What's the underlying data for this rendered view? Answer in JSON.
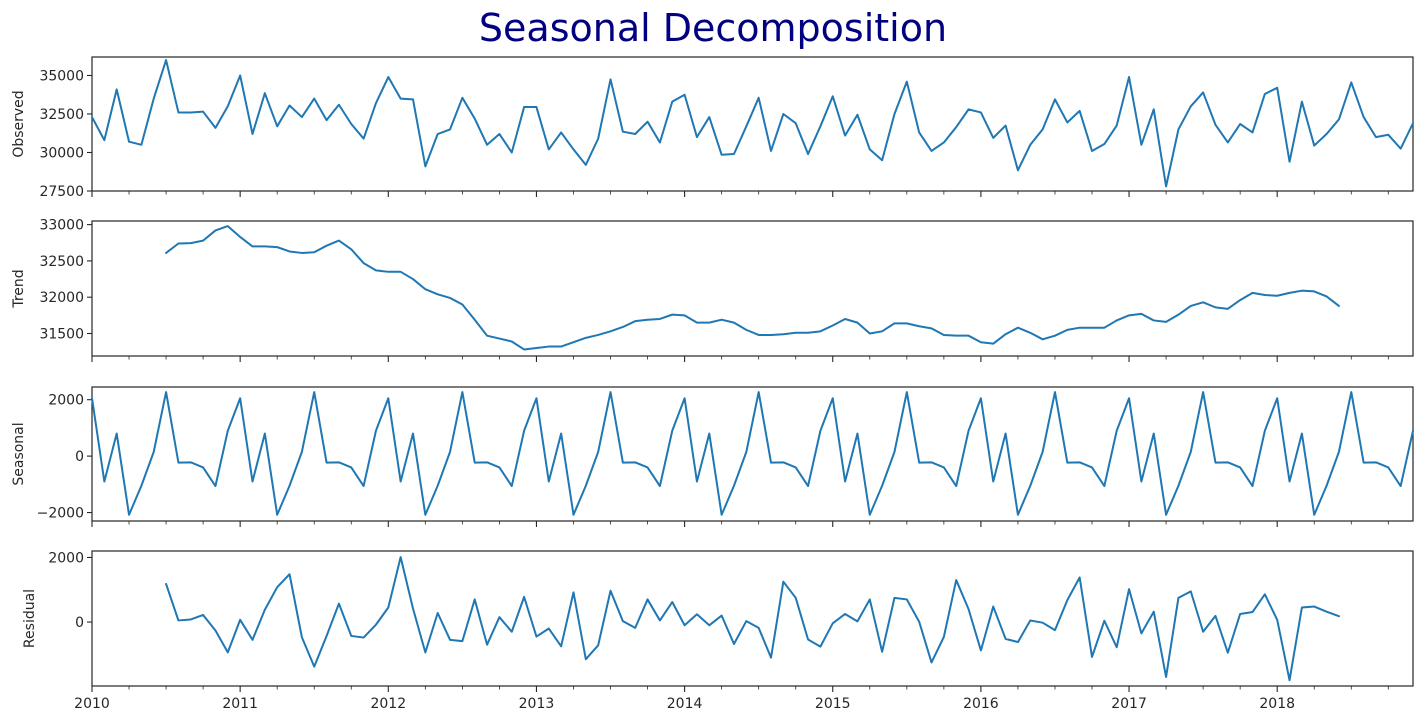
{
  "chart_data": {
    "type": "line",
    "title": "Seasonal Decomposition",
    "line_color": "#1f77b4",
    "title_color": "#000080",
    "x": {
      "start_year": 2010,
      "start_month": 1,
      "frequency": "monthly",
      "xlim": [
        "2010-01",
        "2018-12"
      ],
      "tick_labels": [
        "2010",
        "2011",
        "2012",
        "2013",
        "2014",
        "2015",
        "2016",
        "2017",
        "2018"
      ]
    },
    "panels": [
      {
        "name": "observed",
        "ylabel": "Observed",
        "ylim": [
          27500,
          36200
        ],
        "yticks": [
          27500,
          30000,
          32500,
          35000
        ],
        "ytick_labels": [
          "27500",
          "30000",
          "32500",
          "35000"
        ],
        "values": [
          32300,
          30800,
          34100,
          30700,
          30500,
          33500,
          36000,
          32600,
          32600,
          32650,
          31600,
          33000,
          35000,
          31200,
          33850,
          31700,
          33050,
          32300,
          33500,
          32100,
          33100,
          31850,
          30900,
          33200,
          34900,
          33500,
          33450,
          29100,
          31200,
          31500,
          33550,
          32200,
          30500,
          31200,
          30000,
          32950,
          32950,
          30200,
          31300,
          30200,
          29200,
          30900,
          34750,
          31350,
          31200,
          32000,
          30650,
          33300,
          33750,
          31000,
          32300,
          29850,
          29900,
          31700,
          33550,
          30100,
          32500,
          31900,
          29900,
          31700,
          33650,
          31100,
          32450,
          30200,
          29500,
          32500,
          34600,
          31300,
          30100,
          30650,
          31650,
          32800,
          32600,
          30950,
          31750,
          28850,
          30500,
          31500,
          33450,
          31950,
          32700,
          30100,
          30550,
          31750,
          34900,
          30500,
          32800,
          27800,
          31500,
          33000,
          33900,
          31800,
          30650,
          31850,
          31300,
          33800,
          34200,
          29400,
          33300,
          30450,
          31200,
          32150,
          34550,
          32300,
          31000,
          31150,
          30250,
          31900
        ]
      },
      {
        "name": "trend",
        "ylabel": "Trend",
        "ylim": [
          31190,
          33050
        ],
        "yticks": [
          31500,
          32000,
          32500,
          33000
        ],
        "ytick_labels": [
          "31500",
          "32000",
          "32500",
          "33000"
        ],
        "values": [
          null,
          null,
          null,
          null,
          null,
          null,
          32610,
          32740,
          32745,
          32780,
          32920,
          32980,
          32830,
          32700,
          32700,
          32690,
          32630,
          32610,
          32620,
          32710,
          32780,
          32660,
          32470,
          32370,
          32350,
          32350,
          32250,
          32110,
          32040,
          31990,
          31900,
          31690,
          31470,
          31430,
          31390,
          31280,
          31300,
          31320,
          31320,
          31380,
          31440,
          31480,
          31530,
          31590,
          31670,
          31690,
          31700,
          31760,
          31750,
          31650,
          31650,
          31690,
          31650,
          31550,
          31480,
          31480,
          31490,
          31510,
          31510,
          31530,
          31610,
          31700,
          31650,
          31500,
          31530,
          31640,
          31640,
          31600,
          31570,
          31480,
          31470,
          31470,
          31380,
          31360,
          31490,
          31580,
          31510,
          31420,
          31470,
          31550,
          31580,
          31580,
          31580,
          31680,
          31750,
          31770,
          31680,
          31660,
          31760,
          31880,
          31930,
          31860,
          31840,
          31960,
          32060,
          32030,
          32020,
          32060,
          32090,
          32080,
          32010,
          31880,
          null,
          null,
          null,
          null,
          null,
          null
        ]
      },
      {
        "name": "seasonal",
        "ylabel": "Seasonal",
        "ylim": [
          -2300,
          2450
        ],
        "yticks": [
          -2000,
          0,
          2000
        ],
        "ytick_labels": [
          "−2000",
          "0",
          "2000"
        ],
        "pattern": [
          2050,
          -900,
          800,
          -2080,
          -1050,
          150,
          2270,
          -230,
          -220,
          -400,
          -1060,
          900
        ],
        "values": []
      },
      {
        "name": "residual",
        "ylabel": "Residual",
        "ylim": [
          -1980,
          2200
        ],
        "yticks": [
          0,
          2000
        ],
        "ytick_labels": [
          "0",
          "2000"
        ],
        "values": [
          null,
          null,
          null,
          null,
          null,
          null,
          1180,
          50,
          80,
          220,
          -260,
          -940,
          70,
          -550,
          380,
          1080,
          1480,
          -470,
          -1380,
          -430,
          570,
          -430,
          -480,
          -80,
          450,
          2010,
          420,
          -940,
          280,
          -550,
          -590,
          700,
          -700,
          150,
          -300,
          780,
          -450,
          -200,
          -750,
          920,
          -1150,
          -720,
          970,
          30,
          -180,
          700,
          50,
          620,
          -100,
          240,
          -100,
          200,
          -680,
          30,
          -180,
          -1100,
          1250,
          750,
          -540,
          -760,
          -40,
          250,
          20,
          700,
          -920,
          750,
          700,
          10,
          -1250,
          -460,
          1300,
          400,
          -880,
          480,
          -520,
          -620,
          50,
          -20,
          -250,
          680,
          1380,
          -1080,
          40,
          -780,
          1020,
          -350,
          320,
          -1700,
          750,
          950,
          -300,
          190,
          -950,
          250,
          310,
          860,
          70,
          -1800,
          450,
          480,
          320,
          180,
          null,
          null,
          null,
          null,
          null,
          null
        ]
      }
    ]
  }
}
